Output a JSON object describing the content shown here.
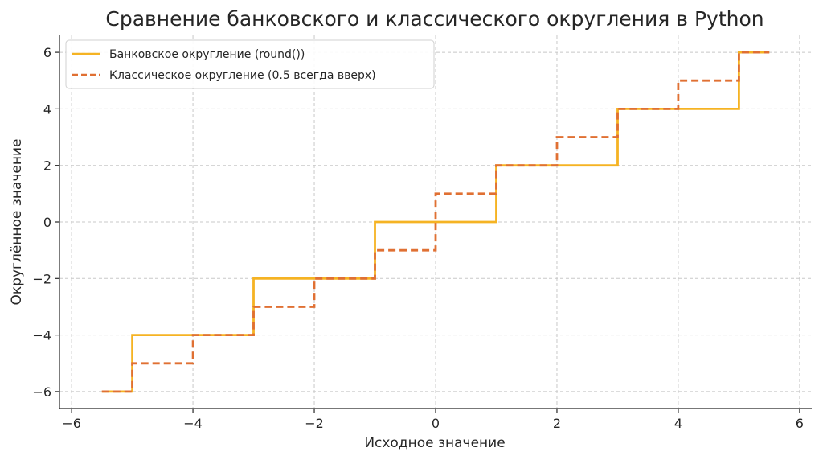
{
  "chart_data": {
    "type": "line",
    "title": "Сравнение банковского и классического округления в Python",
    "xlabel": "Исходное значение",
    "ylabel": "Округлённое значение",
    "xlim": [
      -6.2,
      6.2
    ],
    "ylim": [
      -6.6,
      6.6
    ],
    "xticks": [
      -6,
      -4,
      -2,
      0,
      2,
      4,
      6
    ],
    "yticks": [
      -6,
      -4,
      -2,
      0,
      2,
      4,
      6
    ],
    "grid": true,
    "legend_position": "top-left",
    "series": [
      {
        "name": "Банковское округление (round())",
        "style": "solid",
        "color": "#F5B323",
        "x": [
          -5.5,
          -5,
          -5,
          -3,
          -3,
          -1,
          -1,
          1,
          1,
          3,
          3,
          5,
          5,
          5.5
        ],
        "y": [
          -6,
          -6,
          -4,
          -4,
          -2,
          -2,
          0,
          0,
          2,
          2,
          4,
          4,
          6,
          6
        ]
      },
      {
        "name": "Классическое округление (0.5 всегда вверх)",
        "style": "dashed",
        "color": "#E07033",
        "x": [
          -5.5,
          -5,
          -5,
          -4,
          -4,
          -3,
          -3,
          -2,
          -2,
          -1,
          -1,
          0,
          0,
          1,
          1,
          2,
          2,
          3,
          3,
          4,
          4,
          5,
          5,
          5.5
        ],
        "y": [
          -6,
          -6,
          -5,
          -5,
          -4,
          -4,
          -3,
          -3,
          -2,
          -2,
          -1,
          -1,
          1,
          1,
          2,
          2,
          3,
          3,
          4,
          4,
          5,
          5,
          6,
          6
        ]
      }
    ]
  }
}
